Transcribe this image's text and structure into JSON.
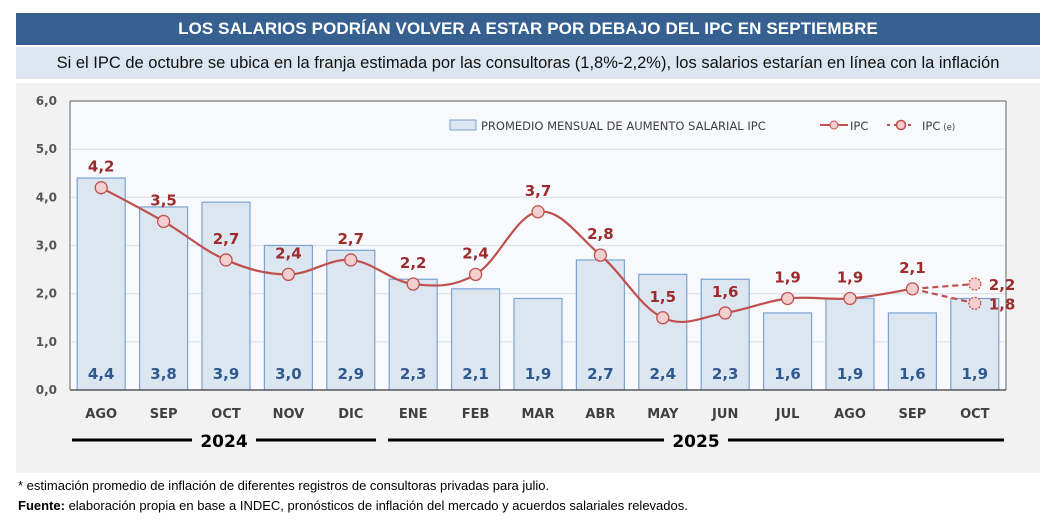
{
  "header": {
    "title": "LOS SALARIOS PODRÍAN VOLVER A ESTAR POR DEBAJO DEL IPC EN SEPTIEMBRE",
    "subtitle": "Si el IPC de octubre se ubica en la franja estimada por las consultoras (1,8%-2,2%), los salarios estarían en línea con la inflación"
  },
  "colors": {
    "title_bg": "#35608f",
    "subtitle_bg": "#dce6f1",
    "bar_fill": "#dce6f1",
    "bar_stroke": "#7ba3d4",
    "bar_label": "#2f5a8f",
    "line": "#c0504d",
    "line_label": "#9c2b2b",
    "marker_fill": "#f4cfcf"
  },
  "chart_data": {
    "type": "bar",
    "categories": [
      "AGO",
      "SEP",
      "OCT",
      "NOV",
      "DIC",
      "ENE",
      "FEB",
      "MAR",
      "ABR",
      "MAY",
      "JUN",
      "JUL",
      "AGO",
      "SEP",
      "OCT"
    ],
    "year_groups": [
      {
        "label": "2024",
        "categories": [
          "AGO",
          "SEP",
          "OCT",
          "NOV",
          "DIC"
        ]
      },
      {
        "label": "2025",
        "categories": [
          "ENE",
          "FEB",
          "MAR",
          "ABR",
          "MAY",
          "JUN",
          "JUL",
          "AGO",
          "SEP",
          "OCT"
        ]
      }
    ],
    "series": [
      {
        "name": "PROMEDIO MENSUAL DE AUMENTO SALARIAL IPC",
        "type": "bar",
        "values": [
          4.4,
          3.8,
          3.9,
          3.0,
          2.9,
          2.3,
          2.1,
          1.9,
          2.7,
          2.4,
          2.3,
          1.6,
          1.9,
          1.6,
          1.9
        ],
        "labels": [
          "4,4",
          "3,8",
          "3,9",
          "3,0",
          "2,9",
          "2,3",
          "2,1",
          "1,9",
          "2,7",
          "2,4",
          "2,3",
          "1,6",
          "1,9",
          "1,6",
          "1,9"
        ]
      },
      {
        "name": "IPC",
        "type": "line",
        "values": [
          4.2,
          3.5,
          2.7,
          2.4,
          2.7,
          2.2,
          2.4,
          3.7,
          2.8,
          1.5,
          1.6,
          1.9,
          1.9,
          2.1,
          null
        ],
        "labels": [
          "4,2",
          "3,5",
          "2,7",
          "2,4",
          "2,7",
          "2,2",
          "2,4",
          "3,7",
          "2,8",
          "1,5",
          "1,6",
          "1,9",
          "1,9",
          "2,1",
          ""
        ]
      },
      {
        "name": "IPC (e)",
        "type": "line-dashed",
        "estimates": [
          {
            "from_index": 13,
            "to_index": 14,
            "from_value": 2.1,
            "to_value": 2.2,
            "label": "2,2"
          },
          {
            "from_index": 13,
            "to_index": 14,
            "from_value": 2.1,
            "to_value": 1.8,
            "label": "1,8"
          }
        ]
      }
    ],
    "legend": {
      "position": "top-right",
      "items": [
        {
          "label": "PROMEDIO MENSUAL DE AUMENTO SALARIAL IPC",
          "kind": "bar"
        },
        {
          "label": "IPC",
          "kind": "line"
        },
        {
          "label": "IPC",
          "sub": "(e)",
          "kind": "line-dashed"
        }
      ]
    },
    "yticks": [
      "0,0",
      "1,0",
      "2,0",
      "3,0",
      "4,0",
      "5,0",
      "6,0"
    ],
    "ylim": [
      0,
      6
    ],
    "grid": true,
    "title": "",
    "xlabel": "",
    "ylabel": ""
  },
  "footer": {
    "note": "* estimación promedio de inflación de diferentes registros de consultoras privadas para julio.",
    "source_label": "Fuente:",
    "source_text": " elaboración propia en base a INDEC, pronósticos de inflación del mercado y acuerdos salariales relevados."
  }
}
